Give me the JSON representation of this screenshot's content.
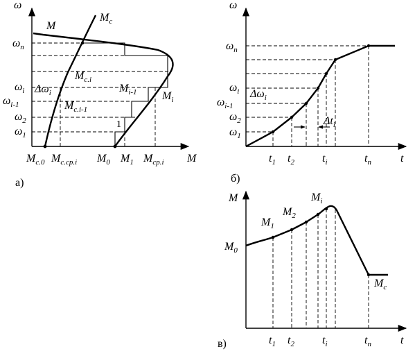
{
  "panel_a": {
    "tag": "а)",
    "y_axis": "ω",
    "x_axis": "M",
    "curve_M": "M",
    "curve_Mc": "M",
    "curve_Mc_sub": "с",
    "omega_n": "ω",
    "omega_n_sub": "n",
    "omega_i": "ω",
    "omega_i_sub": "i",
    "omega_im1": "ω",
    "omega_im1_sub": "i-1",
    "omega_2": "ω",
    "omega_2_sub": "2",
    "omega_1": "ω",
    "omega_1_sub": "1",
    "delta_omega": "Δω",
    "delta_omega_sub": "i",
    "Mci": "M",
    "Mci_sub": "c.i",
    "Mcim1": "M",
    "Mcim1_sub": "c.i-1",
    "Mim1": "M",
    "Mim1_sub": "i-1",
    "Mi": "M",
    "Mi_sub": "i",
    "step_1": "1",
    "x_Mc0": "M",
    "x_Mc0_sub": "c.0",
    "x_Mccpi": "M",
    "x_Mccpi_sub": "c.cp.i",
    "x_M0": "M",
    "x_M0_sub": "0",
    "x_M1": "M",
    "x_M1_sub": "1",
    "x_Mcpi": "M",
    "x_Mcpi_sub": "cp.i"
  },
  "panel_b": {
    "tag": "б)",
    "y_axis": "ω",
    "x_axis": "t",
    "omega_n": "ω",
    "omega_n_sub": "n",
    "omega_i": "ω",
    "omega_i_sub": "i",
    "omega_im1": "ω",
    "omega_im1_sub": "i-1",
    "omega_2": "ω",
    "omega_2_sub": "2",
    "omega_1": "ω",
    "omega_1_sub": "1",
    "delta_omega": "Δω",
    "delta_omega_sub": "i",
    "delta_t": "Δt",
    "delta_t_sub": "i",
    "t1": "t",
    "t1_sub": "1",
    "t2": "t",
    "t2_sub": "2",
    "ti": "t",
    "ti_sub": "i",
    "tn": "t",
    "tn_sub": "п"
  },
  "panel_c": {
    "tag": "в)",
    "y_axis": "M",
    "x_axis": "t",
    "M0": "M",
    "M0_sub": "0",
    "M1": "M",
    "M1_sub": "1",
    "M2": "M",
    "M2_sub": "2",
    "Mi": "M",
    "Mi_sub": "i",
    "Mc": "M",
    "Mc_sub": "с",
    "t1": "t",
    "t1_sub": "1",
    "t2": "t",
    "t2_sub": "2",
    "ti": "t",
    "ti_sub": "i",
    "tn": "t",
    "tn_sub": "п"
  }
}
